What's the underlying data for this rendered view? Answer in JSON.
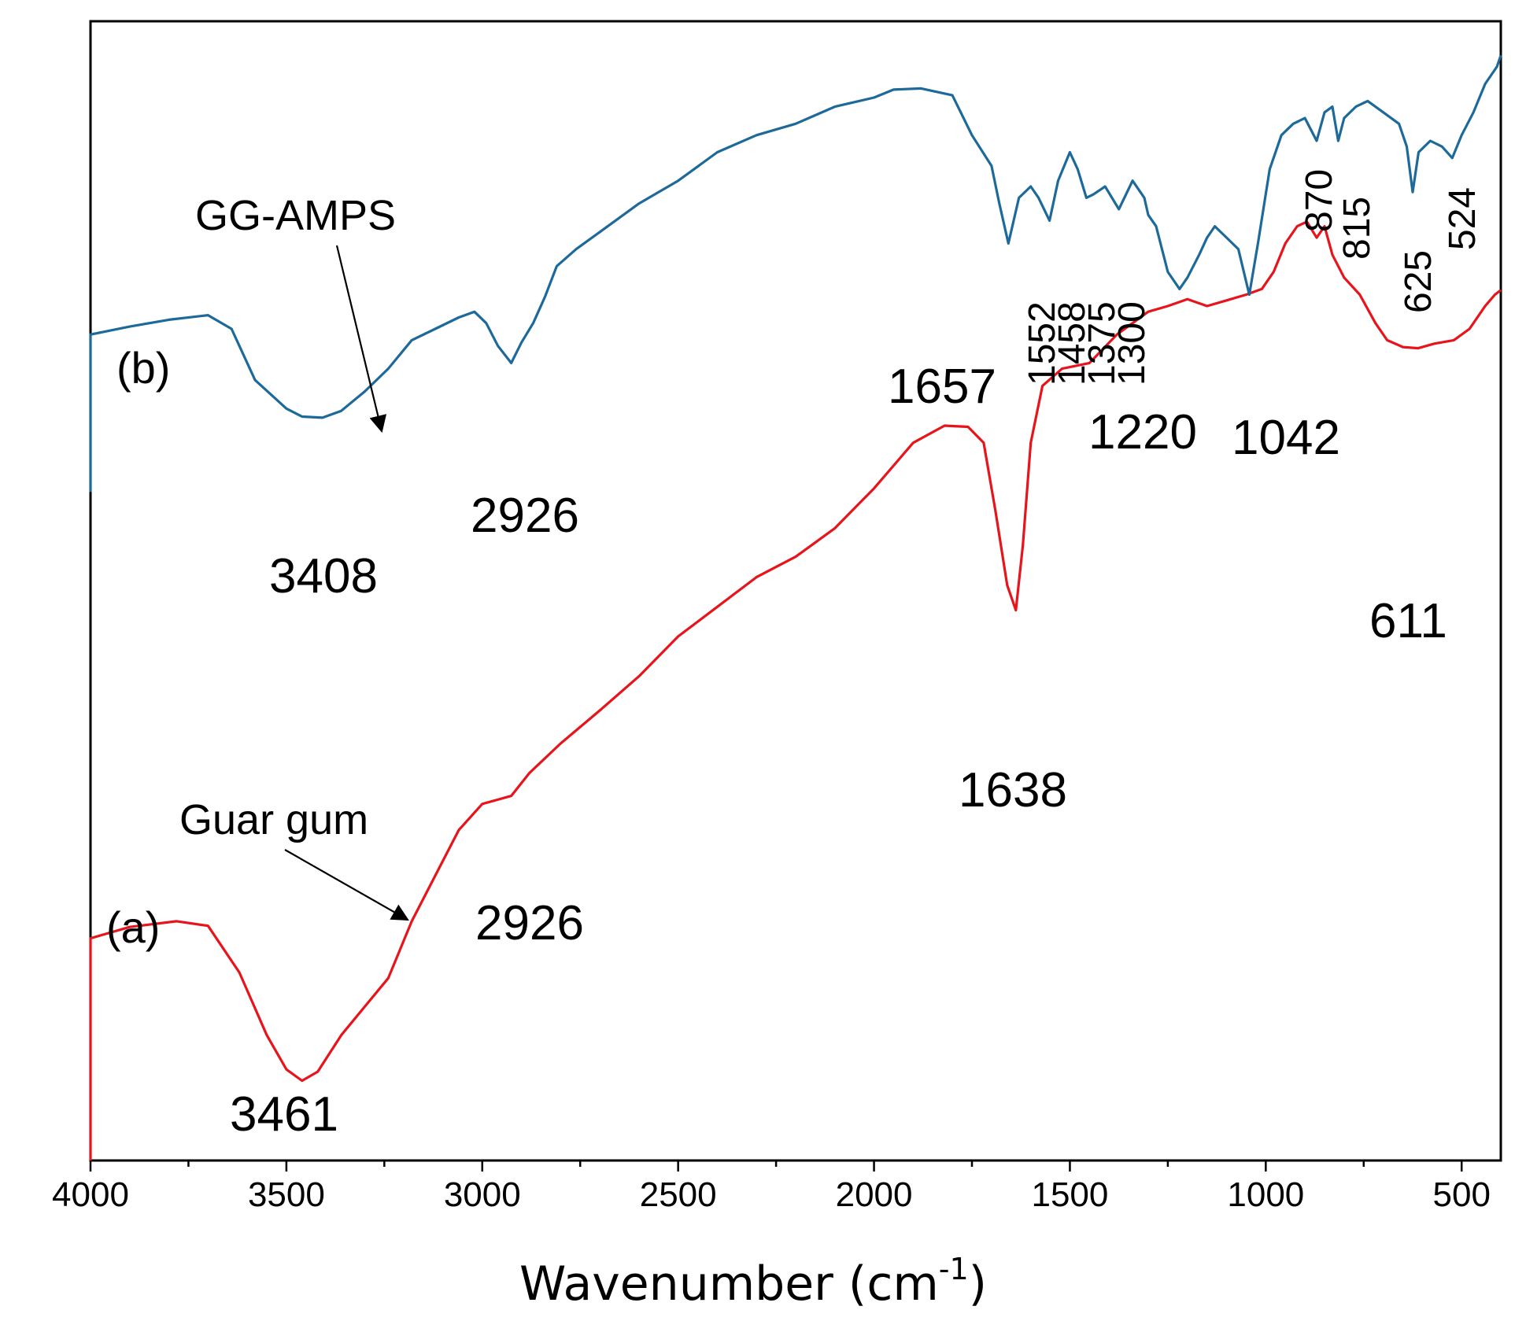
{
  "chart_data": {
    "type": "line",
    "title": "",
    "xlabel": "Wavenumber (cm",
    "xlabel_sup": "-1",
    "xlabel_close": ")",
    "ylabel": "",
    "xlim": [
      4000,
      400
    ],
    "xticks": [
      4000,
      3500,
      3000,
      2500,
      2000,
      1500,
      1000,
      500
    ],
    "xtick_labels": [
      "4000",
      "3500",
      "3000",
      "2500",
      "2000",
      "1500",
      "1000",
      "500"
    ],
    "y_axis_ticks_shown": false,
    "ylim": [
      0,
      100
    ],
    "series": [
      {
        "name": "Guar gum",
        "tag": "(a)",
        "color": "#e8141b",
        "points": [
          [
            4000,
            19.5
          ],
          [
            3900,
            20.5
          ],
          [
            3780,
            21
          ],
          [
            3700,
            20.6
          ],
          [
            3620,
            16.5
          ],
          [
            3550,
            11
          ],
          [
            3500,
            8
          ],
          [
            3460,
            7
          ],
          [
            3420,
            7.8
          ],
          [
            3360,
            11
          ],
          [
            3300,
            13.5
          ],
          [
            3240,
            16
          ],
          [
            3180,
            21
          ],
          [
            3120,
            25
          ],
          [
            3060,
            29
          ],
          [
            3000,
            31.3
          ],
          [
            2926,
            32
          ],
          [
            2880,
            34
          ],
          [
            2800,
            36.6
          ],
          [
            2700,
            39.5
          ],
          [
            2600,
            42.5
          ],
          [
            2500,
            46
          ],
          [
            2400,
            48.6
          ],
          [
            2300,
            51.2
          ],
          [
            2200,
            53
          ],
          [
            2100,
            55.5
          ],
          [
            2000,
            59
          ],
          [
            1900,
            63
          ],
          [
            1820,
            64.5
          ],
          [
            1760,
            64.4
          ],
          [
            1720,
            63
          ],
          [
            1690,
            57
          ],
          [
            1660,
            50.5
          ],
          [
            1638,
            48.3
          ],
          [
            1620,
            54
          ],
          [
            1600,
            63
          ],
          [
            1570,
            68
          ],
          [
            1520,
            69.5
          ],
          [
            1450,
            70
          ],
          [
            1380,
            72.5
          ],
          [
            1300,
            74.5
          ],
          [
            1250,
            75
          ],
          [
            1200,
            75.6
          ],
          [
            1150,
            75
          ],
          [
            1100,
            75.5
          ],
          [
            1050,
            76
          ],
          [
            1010,
            76.5
          ],
          [
            980,
            78
          ],
          [
            950,
            80.5
          ],
          [
            920,
            82
          ],
          [
            895,
            82.4
          ],
          [
            870,
            81
          ],
          [
            850,
            82
          ],
          [
            830,
            79.5
          ],
          [
            800,
            77.5
          ],
          [
            760,
            76
          ],
          [
            720,
            73.5
          ],
          [
            690,
            72
          ],
          [
            650,
            71.4
          ],
          [
            611,
            71.3
          ],
          [
            570,
            71.7
          ],
          [
            520,
            72
          ],
          [
            480,
            73
          ],
          [
            440,
            75
          ],
          [
            415,
            76
          ],
          [
            400,
            76.4
          ]
        ]
      },
      {
        "name": "GG-AMPS",
        "tag": "(b)",
        "color": "#1d6a9a",
        "points": [
          [
            4000,
            72.5
          ],
          [
            3900,
            73.2
          ],
          [
            3800,
            73.8
          ],
          [
            3700,
            74.2
          ],
          [
            3640,
            73
          ],
          [
            3580,
            68.5
          ],
          [
            3500,
            66
          ],
          [
            3460,
            65.3
          ],
          [
            3408,
            65.2
          ],
          [
            3360,
            65.8
          ],
          [
            3300,
            67.5
          ],
          [
            3240,
            69.5
          ],
          [
            3180,
            72
          ],
          [
            3120,
            73
          ],
          [
            3060,
            74
          ],
          [
            3020,
            74.5
          ],
          [
            2990,
            73.5
          ],
          [
            2960,
            71.5
          ],
          [
            2926,
            70
          ],
          [
            2900,
            71.8
          ],
          [
            2870,
            73.5
          ],
          [
            2840,
            75.8
          ],
          [
            2810,
            78.5
          ],
          [
            2760,
            80
          ],
          [
            2700,
            81.5
          ],
          [
            2600,
            84
          ],
          [
            2500,
            86
          ],
          [
            2400,
            88.5
          ],
          [
            2300,
            90
          ],
          [
            2200,
            91
          ],
          [
            2100,
            92.5
          ],
          [
            2000,
            93.3
          ],
          [
            1950,
            94
          ],
          [
            1880,
            94.1
          ],
          [
            1800,
            93.5
          ],
          [
            1750,
            90
          ],
          [
            1700,
            87.3
          ],
          [
            1680,
            84
          ],
          [
            1657,
            80.5
          ],
          [
            1630,
            84.5
          ],
          [
            1600,
            85.5
          ],
          [
            1580,
            84.5
          ],
          [
            1552,
            82.5
          ],
          [
            1530,
            86
          ],
          [
            1500,
            88.5
          ],
          [
            1480,
            87
          ],
          [
            1458,
            84.5
          ],
          [
            1440,
            84.8
          ],
          [
            1410,
            85.5
          ],
          [
            1375,
            83.5
          ],
          [
            1340,
            86
          ],
          [
            1310,
            84.5
          ],
          [
            1300,
            83
          ],
          [
            1280,
            82
          ],
          [
            1250,
            78
          ],
          [
            1220,
            76.5
          ],
          [
            1200,
            77.5
          ],
          [
            1170,
            79.5
          ],
          [
            1150,
            81
          ],
          [
            1130,
            82
          ],
          [
            1100,
            81
          ],
          [
            1070,
            80
          ],
          [
            1042,
            76
          ],
          [
            1020,
            80.5
          ],
          [
            990,
            87
          ],
          [
            960,
            90
          ],
          [
            930,
            91
          ],
          [
            900,
            91.5
          ],
          [
            870,
            89.5
          ],
          [
            850,
            92
          ],
          [
            830,
            92.5
          ],
          [
            815,
            89.5
          ],
          [
            800,
            91.5
          ],
          [
            770,
            92.5
          ],
          [
            740,
            93
          ],
          [
            700,
            92
          ],
          [
            660,
            91
          ],
          [
            640,
            89
          ],
          [
            625,
            85
          ],
          [
            610,
            88.5
          ],
          [
            580,
            89.5
          ],
          [
            550,
            89
          ],
          [
            524,
            88
          ],
          [
            500,
            90
          ],
          [
            470,
            92
          ],
          [
            440,
            94.5
          ],
          [
            410,
            96
          ],
          [
            400,
            97
          ]
        ]
      }
    ],
    "annotations": {
      "a_name": "Guar gum",
      "b_name": "GG-AMPS",
      "a_tag": "(a)",
      "b_tag": "(b)",
      "peaks_a": [
        "3461",
        "2926",
        "1638",
        "611"
      ],
      "peaks_b": [
        "3408",
        "2926",
        "1657",
        "1552",
        "1458",
        "1375",
        "1300",
        "1220",
        "1042",
        "870",
        "815",
        "625",
        "524"
      ]
    }
  }
}
